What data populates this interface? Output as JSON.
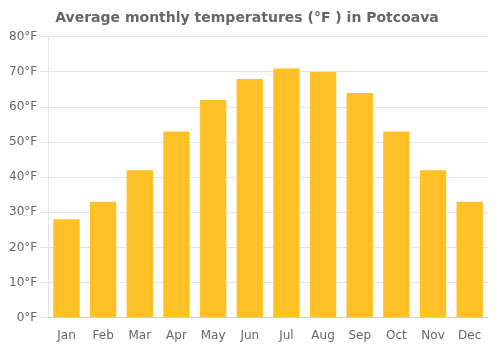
{
  "chart_data": {
    "type": "bar",
    "title": "Average monthly temperatures (°F ) in Potcoava",
    "categories": [
      "Jan",
      "Feb",
      "Mar",
      "Apr",
      "May",
      "Jun",
      "Jul",
      "Aug",
      "Sep",
      "Oct",
      "Nov",
      "Dec"
    ],
    "values": [
      28,
      33,
      42,
      53,
      62,
      68,
      71,
      70,
      64,
      53,
      42,
      33
    ],
    "color": "#FFC125",
    "ylim": [
      0,
      80
    ],
    "yticks": [
      {
        "value": 0,
        "label": "0°F"
      },
      {
        "value": 10,
        "label": "10°F"
      },
      {
        "value": 20,
        "label": "20°F"
      },
      {
        "value": 30,
        "label": "30°F"
      },
      {
        "value": 40,
        "label": "40°F"
      },
      {
        "value": 50,
        "label": "50°F"
      },
      {
        "value": 60,
        "label": "60°F"
      },
      {
        "value": 70,
        "label": "70°F"
      },
      {
        "value": 80,
        "label": "80°F"
      }
    ],
    "grid": "y"
  }
}
